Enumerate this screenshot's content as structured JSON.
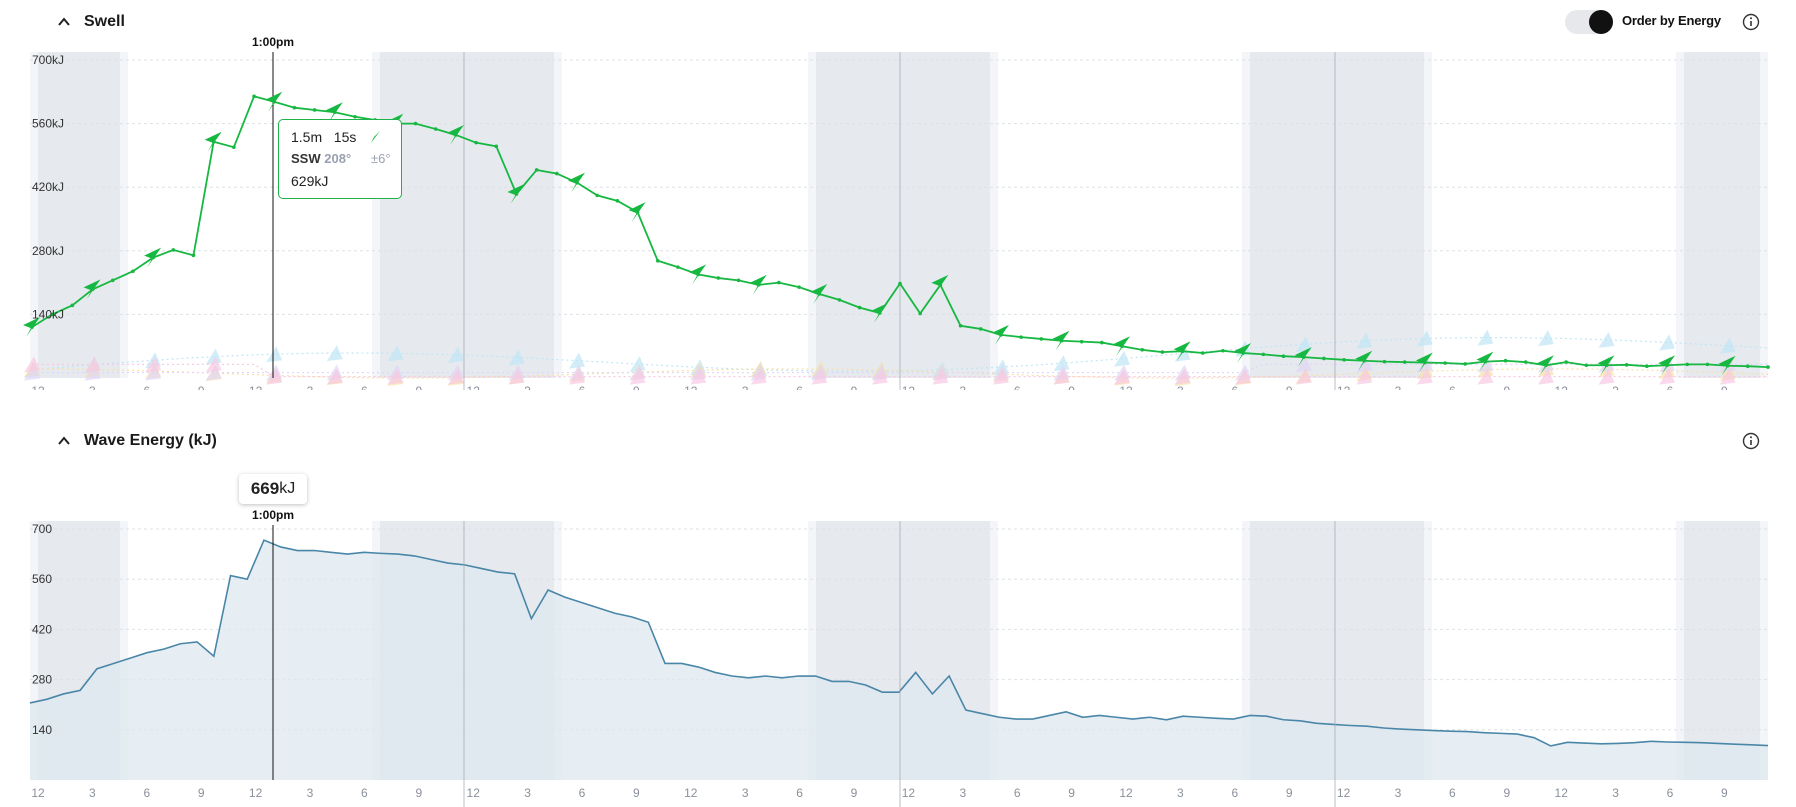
{
  "swell_section": {
    "title": "Swell",
    "toggle_label": "Order by Energy",
    "toggle_on": true,
    "current_time": "1:00pm",
    "tooltip": {
      "height": "1.5m",
      "period": "15s",
      "direction": "SSW",
      "degrees": "208°",
      "spread": "±6°",
      "energy": "629kJ"
    }
  },
  "energy_section": {
    "title": "Wave Energy (kJ)",
    "current_time": "1:00pm",
    "current_value": "669",
    "current_unit": "kJ"
  },
  "x_ticks": [
    "12",
    "3",
    "6",
    "9",
    "12",
    "3",
    "6",
    "9",
    "12",
    "3",
    "6",
    "9",
    "12",
    "3",
    "6",
    "9",
    "12",
    "3",
    "6",
    "9",
    "12",
    "3",
    "6",
    "9",
    "12",
    "3",
    "6",
    "9",
    "12",
    "3",
    "6",
    "9"
  ],
  "colors": {
    "primary_swell": "#16b841",
    "energy_line": "#4a86a8",
    "energy_fill": "#dde8ef",
    "night_band": "#e6e9ee",
    "tooltip_border": "#1fb24a"
  },
  "chart_data": [
    {
      "type": "line",
      "name": "swell-energy-chart",
      "y_tick_labels": [
        "700kJ",
        "560kJ",
        "420kJ",
        "280kJ",
        "140kJ"
      ],
      "y_tick_values": [
        700,
        560,
        420,
        280,
        140
      ],
      "ylim": [
        0,
        700
      ],
      "x_unit": "3-hour steps over 6 days",
      "series": [
        {
          "values": [
            112,
            140,
            160,
            195,
            215,
            235,
            265,
            282,
            270,
            520,
            508,
            620,
            608,
            595,
            590,
            585,
            575,
            568,
            560,
            560,
            548,
            535,
            518,
            510,
            405,
            458,
            450,
            430,
            402,
            390,
            365,
            258,
            244,
            228,
            220,
            215,
            205,
            210,
            200,
            185,
            172,
            155,
            143,
            208,
            142,
            205,
            115,
            108,
            95,
            90,
            86,
            82,
            80,
            78,
            70,
            62,
            57,
            59,
            55,
            60,
            55,
            52,
            48,
            46,
            43,
            40,
            38,
            36,
            35,
            34,
            33,
            31,
            36,
            38,
            35,
            28,
            35,
            28,
            28,
            29,
            26,
            28,
            30,
            30,
            27,
            26,
            24
          ]
        }
      ]
    },
    {
      "type": "area",
      "name": "wave-energy-chart",
      "y_tick_labels": [
        "700",
        "560",
        "420",
        "280",
        "140"
      ],
      "y_tick_values": [
        700,
        560,
        420,
        280,
        140
      ],
      "ylim": [
        0,
        700
      ],
      "x_unit": "3-hour steps over 6 days",
      "series": [
        {
          "values": [
            215,
            225,
            240,
            250,
            310,
            325,
            340,
            355,
            365,
            380,
            385,
            345,
            570,
            560,
            669,
            650,
            640,
            640,
            635,
            630,
            635,
            632,
            630,
            625,
            615,
            605,
            600,
            590,
            580,
            575,
            450,
            530,
            510,
            495,
            480,
            465,
            455,
            440,
            325,
            325,
            315,
            300,
            290,
            285,
            290,
            285,
            290,
            290,
            275,
            275,
            265,
            245,
            245,
            300,
            240,
            290,
            195,
            185,
            175,
            170,
            170,
            180,
            190,
            175,
            180,
            175,
            170,
            175,
            168,
            178,
            175,
            172,
            170,
            180,
            178,
            168,
            165,
            158,
            155,
            152,
            150,
            145,
            142,
            140,
            138,
            136,
            135,
            132,
            130,
            128,
            118,
            95,
            105,
            103,
            101,
            102,
            104,
            108,
            106,
            105,
            104,
            102,
            100,
            98,
            96
          ]
        }
      ]
    }
  ]
}
